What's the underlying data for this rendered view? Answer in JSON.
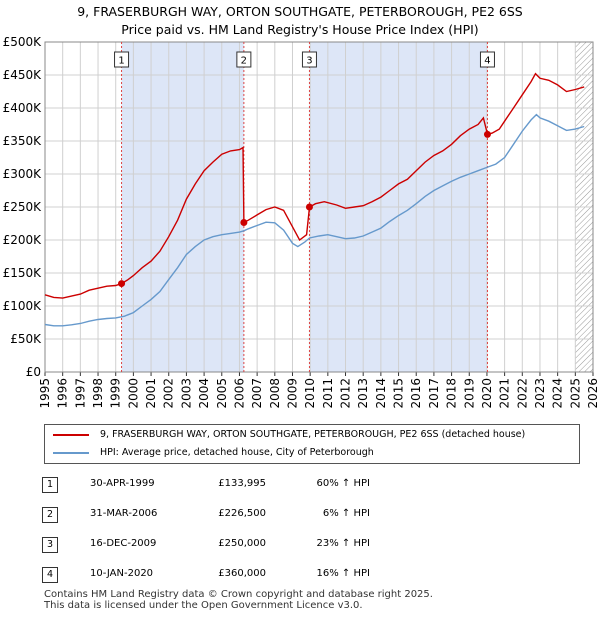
{
  "title_line1": "9, FRASERBURGH WAY, ORTON SOUTHGATE, PETERBOROUGH, PE2 6SS",
  "title_line2": "Price paid vs. HM Land Registry's House Price Index (HPI)",
  "colors": {
    "price_line": "#cc0000",
    "hpi_line": "#6699cc",
    "shade": "#dde6f7",
    "vline": "#dd4444",
    "hatch": "#999999"
  },
  "chart_data": {
    "type": "line",
    "title": "9, FRASERBURGH WAY, ORTON SOUTHGATE, PETERBOROUGH, PE2 6SS — Price paid vs. HM Land Registry's House Price Index (HPI)",
    "xlim": [
      1995,
      2026
    ],
    "ylim": [
      0,
      500000
    ],
    "y_ticks": [
      {
        "value": 0,
        "label": "£0"
      },
      {
        "value": 50000,
        "label": "£50K"
      },
      {
        "value": 100000,
        "label": "£100K"
      },
      {
        "value": 150000,
        "label": "£150K"
      },
      {
        "value": 200000,
        "label": "£200K"
      },
      {
        "value": 250000,
        "label": "£250K"
      },
      {
        "value": 300000,
        "label": "£300K"
      },
      {
        "value": 350000,
        "label": "£350K"
      },
      {
        "value": 400000,
        "label": "£400K"
      },
      {
        "value": 450000,
        "label": "£450K"
      },
      {
        "value": 500000,
        "label": "£500K"
      }
    ],
    "x_ticks": [
      "1995",
      "1996",
      "1997",
      "1998",
      "1999",
      "2000",
      "2001",
      "2002",
      "2003",
      "2004",
      "2005",
      "2006",
      "2007",
      "2008",
      "2009",
      "2010",
      "2011",
      "2012",
      "2013",
      "2014",
      "2015",
      "2016",
      "2017",
      "2018",
      "2019",
      "2020",
      "2021",
      "2022",
      "2023",
      "2024",
      "2025",
      "2026"
    ],
    "grid": true,
    "shaded_ranges": [
      [
        1999.33,
        2006.25
      ],
      [
        2009.96,
        2020.03
      ]
    ],
    "hatched_from": 2025.0,
    "series": [
      {
        "name": "9, FRASERBURGH WAY, ORTON SOUTHGATE, PETERBOROUGH, PE2 6SS (detached house)",
        "points": [
          [
            1995.0,
            117000
          ],
          [
            1995.5,
            113000
          ],
          [
            1996.0,
            112000
          ],
          [
            1996.5,
            115000
          ],
          [
            1997.0,
            118000
          ],
          [
            1997.5,
            124000
          ],
          [
            1998.0,
            127000
          ],
          [
            1998.5,
            130000
          ],
          [
            1999.0,
            131000
          ],
          [
            1999.33,
            133995
          ],
          [
            1999.7,
            140000
          ],
          [
            2000.0,
            146000
          ],
          [
            2000.5,
            158000
          ],
          [
            2001.0,
            168000
          ],
          [
            2001.5,
            183000
          ],
          [
            2002.0,
            205000
          ],
          [
            2002.5,
            230000
          ],
          [
            2003.0,
            262000
          ],
          [
            2003.5,
            285000
          ],
          [
            2004.0,
            305000
          ],
          [
            2004.5,
            318000
          ],
          [
            2005.0,
            330000
          ],
          [
            2005.5,
            335000
          ],
          [
            2006.0,
            337000
          ],
          [
            2006.2,
            340000
          ],
          [
            2006.25,
            226500
          ],
          [
            2006.5,
            230000
          ],
          [
            2007.0,
            238000
          ],
          [
            2007.5,
            246000
          ],
          [
            2008.0,
            250000
          ],
          [
            2008.5,
            245000
          ],
          [
            2009.0,
            220000
          ],
          [
            2009.4,
            200000
          ],
          [
            2009.8,
            208000
          ],
          [
            2009.96,
            250000
          ],
          [
            2010.3,
            255000
          ],
          [
            2010.8,
            258000
          ],
          [
            2011.5,
            253000
          ],
          [
            2012.0,
            248000
          ],
          [
            2012.5,
            250000
          ],
          [
            2013.0,
            252000
          ],
          [
            2013.5,
            258000
          ],
          [
            2014.0,
            265000
          ],
          [
            2014.5,
            275000
          ],
          [
            2015.0,
            285000
          ],
          [
            2015.5,
            292000
          ],
          [
            2016.0,
            305000
          ],
          [
            2016.5,
            318000
          ],
          [
            2017.0,
            328000
          ],
          [
            2017.5,
            335000
          ],
          [
            2018.0,
            345000
          ],
          [
            2018.5,
            358000
          ],
          [
            2019.0,
            368000
          ],
          [
            2019.5,
            375000
          ],
          [
            2019.8,
            385000
          ],
          [
            2020.03,
            360000
          ],
          [
            2020.3,
            362000
          ],
          [
            2020.7,
            368000
          ],
          [
            2021.0,
            380000
          ],
          [
            2021.5,
            400000
          ],
          [
            2022.0,
            420000
          ],
          [
            2022.5,
            440000
          ],
          [
            2022.75,
            452000
          ],
          [
            2023.0,
            445000
          ],
          [
            2023.5,
            442000
          ],
          [
            2024.0,
            435000
          ],
          [
            2024.5,
            425000
          ],
          [
            2025.0,
            428000
          ],
          [
            2025.5,
            432000
          ]
        ]
      },
      {
        "name": "HPI: Average price, detached house, City of Peterborough",
        "points": [
          [
            1995.0,
            72000
          ],
          [
            1995.5,
            70000
          ],
          [
            1996.0,
            70000
          ],
          [
            1996.5,
            71500
          ],
          [
            1997.0,
            73500
          ],
          [
            1997.5,
            77000
          ],
          [
            1998.0,
            79500
          ],
          [
            1998.5,
            81000
          ],
          [
            1999.0,
            82000
          ],
          [
            1999.5,
            84500
          ],
          [
            2000.0,
            90000
          ],
          [
            2000.5,
            100000
          ],
          [
            2001.0,
            110000
          ],
          [
            2001.5,
            122000
          ],
          [
            2002.0,
            140000
          ],
          [
            2002.5,
            158000
          ],
          [
            2003.0,
            178000
          ],
          [
            2003.5,
            190000
          ],
          [
            2004.0,
            200000
          ],
          [
            2004.5,
            205000
          ],
          [
            2005.0,
            208000
          ],
          [
            2005.5,
            210000
          ],
          [
            2006.0,
            212000
          ],
          [
            2006.25,
            214000
          ],
          [
            2006.5,
            217000
          ],
          [
            2007.0,
            222000
          ],
          [
            2007.5,
            227000
          ],
          [
            2008.0,
            226000
          ],
          [
            2008.5,
            215000
          ],
          [
            2009.0,
            195000
          ],
          [
            2009.3,
            190000
          ],
          [
            2009.7,
            197000
          ],
          [
            2009.96,
            203000
          ],
          [
            2010.5,
            206000
          ],
          [
            2011.0,
            208000
          ],
          [
            2011.5,
            205000
          ],
          [
            2012.0,
            202000
          ],
          [
            2012.5,
            203000
          ],
          [
            2013.0,
            206000
          ],
          [
            2013.5,
            212000
          ],
          [
            2014.0,
            218000
          ],
          [
            2014.5,
            228000
          ],
          [
            2015.0,
            237000
          ],
          [
            2015.5,
            245000
          ],
          [
            2016.0,
            255000
          ],
          [
            2016.5,
            266000
          ],
          [
            2017.0,
            275000
          ],
          [
            2017.5,
            282000
          ],
          [
            2018.0,
            289000
          ],
          [
            2018.5,
            295000
          ],
          [
            2019.0,
            300000
          ],
          [
            2019.5,
            305000
          ],
          [
            2020.0,
            310000
          ],
          [
            2020.5,
            315000
          ],
          [
            2021.0,
            325000
          ],
          [
            2021.5,
            345000
          ],
          [
            2022.0,
            365000
          ],
          [
            2022.5,
            382000
          ],
          [
            2022.8,
            390000
          ],
          [
            2023.0,
            385000
          ],
          [
            2023.5,
            380000
          ],
          [
            2024.0,
            373000
          ],
          [
            2024.5,
            366000
          ],
          [
            2025.0,
            368000
          ],
          [
            2025.5,
            372000
          ]
        ]
      }
    ],
    "sales": [
      {
        "id": "1",
        "x": 1999.33,
        "value": 133995,
        "date": "30-APR-1999",
        "price": "£133,995",
        "hpi": "60% ↑ HPI"
      },
      {
        "id": "2",
        "x": 2006.25,
        "value": 226500,
        "date": "31-MAR-2006",
        "price": "£226,500",
        "hpi": "6% ↑ HPI"
      },
      {
        "id": "3",
        "x": 2009.96,
        "value": 250000,
        "date": "16-DEC-2009",
        "price": "£250,000",
        "hpi": "23% ↑ HPI"
      },
      {
        "id": "4",
        "x": 2020.03,
        "value": 360000,
        "date": "10-JAN-2020",
        "price": "£360,000",
        "hpi": "16% ↑ HPI"
      }
    ]
  },
  "legend": {
    "price_label": "9, FRASERBURGH WAY, ORTON SOUTHGATE, PETERBOROUGH, PE2 6SS (detached house)",
    "hpi_label": "HPI: Average price, detached house, City of Peterborough"
  },
  "footer": {
    "line1": "Contains HM Land Registry data © Crown copyright and database right 2025.",
    "line2": "This data is licensed under the Open Government Licence v3.0."
  }
}
